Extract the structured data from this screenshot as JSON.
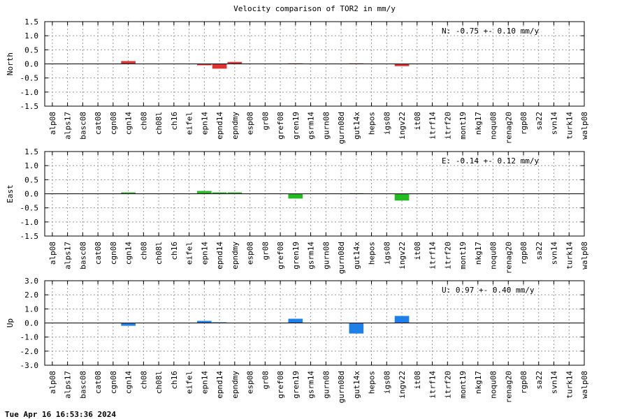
{
  "title": "Velocity comparison of TOR2 in mm/y",
  "footer": "Tue Apr 16 16:53:36 2024",
  "chart_data": [
    {
      "type": "bar",
      "ylabel": "North",
      "ylim": [
        -1.5,
        1.5
      ],
      "yticks": [
        1.5,
        1.0,
        0.5,
        0.0,
        -0.5,
        -1.0,
        -1.5
      ],
      "ytick_labels": [
        "1.5",
        "1.0",
        "0.5",
        "0.0",
        "-0.5",
        "-1.0",
        "-1.5"
      ],
      "grid": true,
      "color": "#dd3333",
      "annotation": "N:  -0.75 +-  0.10 mm/y",
      "categories": [
        "alp08",
        "alps17",
        "basc08",
        "cat08",
        "cgn08",
        "cgn14",
        "ch08",
        "ch08l",
        "ch16",
        "eifel",
        "epn14",
        "epnd14",
        "epndmy",
        "esp08",
        "gr08",
        "gref08",
        "gren19",
        "gsrm14",
        "gurn08",
        "gurn08d",
        "gut14x",
        "hepos",
        "igs08",
        "ingv22",
        "it08",
        "itrf14",
        "itrf20",
        "mont19",
        "nkg17",
        "noqu08",
        "renag20",
        "rgp08",
        "sa22",
        "svn14",
        "turk14",
        "walp08"
      ],
      "values": [
        0,
        0,
        0,
        0,
        0,
        0.1,
        0,
        0,
        0,
        0,
        -0.05,
        -0.17,
        0.07,
        0,
        0,
        0,
        0.02,
        0,
        0,
        0,
        0.02,
        0,
        0,
        -0.08,
        0,
        0,
        0,
        0,
        0,
        0,
        0,
        0,
        0,
        0,
        0,
        0
      ]
    },
    {
      "type": "bar",
      "ylabel": "East",
      "ylim": [
        -1.5,
        1.5
      ],
      "yticks": [
        1.5,
        1.0,
        0.5,
        0.0,
        -0.5,
        -1.0,
        -1.5
      ],
      "ytick_labels": [
        "1.5",
        "1.0",
        "0.5",
        "0.0",
        "-0.5",
        "-1.0",
        "-1.5"
      ],
      "grid": true,
      "color": "#22bb22",
      "annotation": "E:  -0.14 +-  0.12 mm/y",
      "categories": [
        "alp08",
        "alps17",
        "basc08",
        "cat08",
        "cgn08",
        "cgn14",
        "ch08",
        "ch08l",
        "ch16",
        "eifel",
        "epn14",
        "epnd14",
        "epndmy",
        "esp08",
        "gr08",
        "gref08",
        "gren19",
        "gsrm14",
        "gurn08",
        "gurn08d",
        "gut14x",
        "hepos",
        "igs08",
        "ingv22",
        "it08",
        "itrf14",
        "itrf20",
        "mont19",
        "nkg17",
        "noqu08",
        "renag20",
        "rgp08",
        "sa22",
        "svn14",
        "turk14",
        "walp08"
      ],
      "values": [
        0,
        0,
        0,
        0,
        0,
        0.05,
        0,
        0,
        0,
        0,
        0.1,
        0.05,
        0.05,
        0,
        0,
        0,
        -0.17,
        0,
        0,
        0,
        0.02,
        0,
        0,
        -0.24,
        0,
        0,
        0,
        0,
        0,
        0,
        0,
        0,
        0,
        0,
        0,
        0
      ]
    },
    {
      "type": "bar",
      "ylabel": "Up",
      "ylim": [
        -3.0,
        3.0
      ],
      "yticks": [
        3.0,
        2.0,
        1.0,
        0.0,
        -1.0,
        -2.0,
        -3.0
      ],
      "ytick_labels": [
        "3.0",
        "2.0",
        "1.0",
        "0.0",
        "-1.0",
        "-2.0",
        "-3.0"
      ],
      "grid": true,
      "color": "#1e7fe8",
      "annotation": "U:   0.97 +-  0.40 mm/y",
      "categories": [
        "alp08",
        "alps17",
        "basc08",
        "cat08",
        "cgn08",
        "cgn14",
        "ch08",
        "ch08l",
        "ch16",
        "eifel",
        "epn14",
        "epnd14",
        "epndmy",
        "esp08",
        "gr08",
        "gref08",
        "gren19",
        "gsrm14",
        "gurn08",
        "gurn08d",
        "gut14x",
        "hepos",
        "igs08",
        "ingv22",
        "it08",
        "itrf14",
        "itrf20",
        "mont19",
        "nkg17",
        "noqu08",
        "renag20",
        "rgp08",
        "sa22",
        "svn14",
        "turk14",
        "walp08"
      ],
      "values": [
        0,
        0,
        0,
        0,
        0,
        -0.2,
        0,
        0,
        0,
        0,
        0.15,
        0.05,
        0,
        0,
        0,
        0,
        0.3,
        0,
        0,
        0,
        -0.75,
        0,
        0,
        0.5,
        0,
        0,
        0,
        0,
        0,
        0,
        0,
        0,
        0,
        0,
        0,
        0
      ]
    }
  ]
}
